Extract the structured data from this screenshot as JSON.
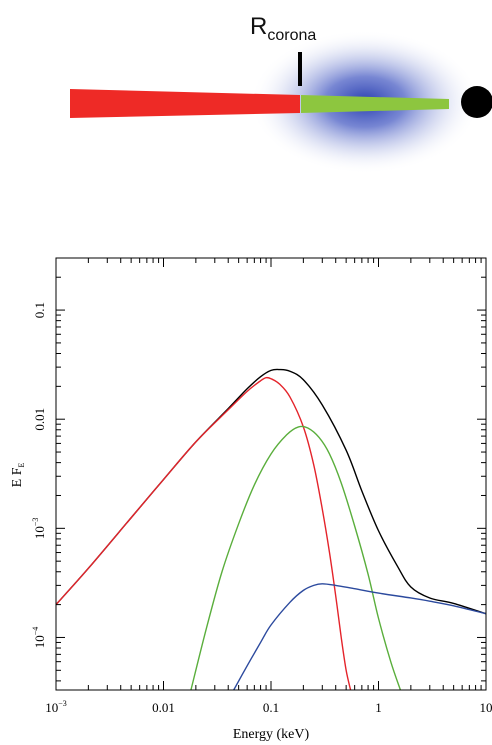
{
  "schematic": {
    "label_main": "R",
    "label_sub": "corona",
    "colors": {
      "outer_disc": "#ee2a26",
      "inner_disc": "#8dc63f",
      "corona": "#2a3fb0",
      "black_hole": "#000000"
    }
  },
  "chart_data": {
    "type": "line",
    "title": "",
    "xlabel": "Energy (keV)",
    "ylabel_main": "E F",
    "ylabel_sub": "E",
    "xscale": "log",
    "yscale": "log",
    "xlim": [
      0.001,
      10
    ],
    "ylim": [
      3.3e-05,
      0.3
    ],
    "x_ticks": [
      {
        "value": 0.001,
        "label": "10",
        "sup": "−3"
      },
      {
        "value": 0.01,
        "label": "0.01",
        "sup": ""
      },
      {
        "value": 0.1,
        "label": "0.1",
        "sup": ""
      },
      {
        "value": 1,
        "label": "1",
        "sup": ""
      },
      {
        "value": 10,
        "label": "10",
        "sup": ""
      }
    ],
    "y_ticks": [
      {
        "value": 0.0001,
        "label": "10",
        "sup": "−4"
      },
      {
        "value": 0.001,
        "label": "10",
        "sup": "−3"
      },
      {
        "value": 0.01,
        "label": "0.01",
        "sup": ""
      },
      {
        "value": 0.1,
        "label": "0.1",
        "sup": ""
      }
    ],
    "grid": false,
    "series": [
      {
        "color": "#000000",
        "points": [
          [
            0.001,
            0.0002
          ],
          [
            0.002,
            0.00043
          ],
          [
            0.005,
            0.00125
          ],
          [
            0.01,
            0.0028
          ],
          [
            0.02,
            0.0062
          ],
          [
            0.04,
            0.0125
          ],
          [
            0.06,
            0.019
          ],
          [
            0.08,
            0.0245
          ],
          [
            0.1,
            0.028
          ],
          [
            0.12,
            0.0285
          ],
          [
            0.15,
            0.0275
          ],
          [
            0.2,
            0.023
          ],
          [
            0.3,
            0.0135
          ],
          [
            0.5,
            0.0052
          ],
          [
            0.7,
            0.0022
          ],
          [
            1.0,
            0.00095
          ],
          [
            1.5,
            0.00045
          ],
          [
            2.0,
            0.00029
          ],
          [
            3.0,
            0.00023
          ],
          [
            5.0,
            0.000205
          ],
          [
            10.0,
            0.000165
          ]
        ]
      },
      {
        "color": "#e4242b",
        "points": [
          [
            0.001,
            0.0002
          ],
          [
            0.002,
            0.00043
          ],
          [
            0.005,
            0.00125
          ],
          [
            0.01,
            0.0028
          ],
          [
            0.02,
            0.0062
          ],
          [
            0.04,
            0.0122
          ],
          [
            0.06,
            0.018
          ],
          [
            0.08,
            0.0225
          ],
          [
            0.09,
            0.024
          ],
          [
            0.1,
            0.0235
          ],
          [
            0.12,
            0.021
          ],
          [
            0.15,
            0.016
          ],
          [
            0.2,
            0.0085
          ],
          [
            0.25,
            0.0038
          ],
          [
            0.3,
            0.0015
          ],
          [
            0.35,
            0.0006
          ],
          [
            0.4,
            0.00024
          ],
          [
            0.45,
            0.0001
          ],
          [
            0.5,
            5e-05
          ],
          [
            0.55,
            3.3e-05
          ]
        ]
      },
      {
        "color": "#5aae3c",
        "points": [
          [
            0.018,
            3.3e-05
          ],
          [
            0.025,
            0.00012
          ],
          [
            0.035,
            0.0004
          ],
          [
            0.05,
            0.0011
          ],
          [
            0.07,
            0.0025
          ],
          [
            0.1,
            0.0048
          ],
          [
            0.14,
            0.0072
          ],
          [
            0.18,
            0.0085
          ],
          [
            0.22,
            0.0083
          ],
          [
            0.28,
            0.0068
          ],
          [
            0.35,
            0.0048
          ],
          [
            0.45,
            0.0026
          ],
          [
            0.6,
            0.00105
          ],
          [
            0.8,
            0.00038
          ],
          [
            1.0,
            0.00015
          ],
          [
            1.3,
            6e-05
          ],
          [
            1.6,
            3.3e-05
          ]
        ]
      },
      {
        "color": "#2c4a9e",
        "points": [
          [
            0.045,
            3.3e-05
          ],
          [
            0.06,
            5.5e-05
          ],
          [
            0.08,
            9e-05
          ],
          [
            0.1,
            0.00013
          ],
          [
            0.15,
            0.00021
          ],
          [
            0.2,
            0.00027
          ],
          [
            0.25,
            0.0003
          ],
          [
            0.3,
            0.00031
          ],
          [
            0.4,
            0.0003
          ],
          [
            0.6,
            0.00028
          ],
          [
            1.0,
            0.000255
          ],
          [
            2.0,
            0.00023
          ],
          [
            3.0,
            0.000215
          ],
          [
            5.0,
            0.000195
          ],
          [
            10.0,
            0.000165
          ]
        ]
      }
    ]
  }
}
